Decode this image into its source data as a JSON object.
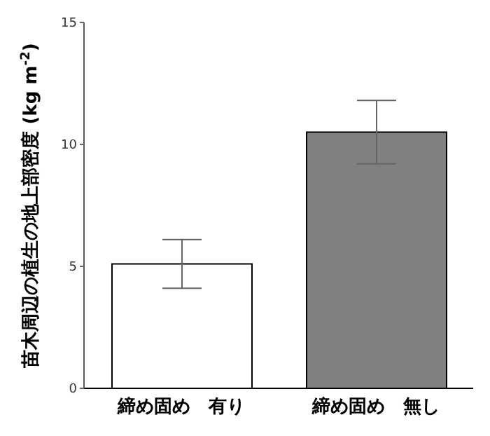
{
  "chart_data": {
    "type": "bar",
    "ylabel": "苗木周辺の植生の地上部密度 (kg m$^{-2}$)",
    "categories": [
      "締め固め　有り",
      "締め固め　無し"
    ],
    "values": [
      5.1,
      10.5
    ],
    "colors": [
      "#ffffff",
      "#808080"
    ],
    "errors": [
      1.0,
      1.3
    ],
    "ylim": [
      0,
      15
    ],
    "yticks": [
      0,
      5,
      10,
      15
    ],
    "grid": false
  }
}
